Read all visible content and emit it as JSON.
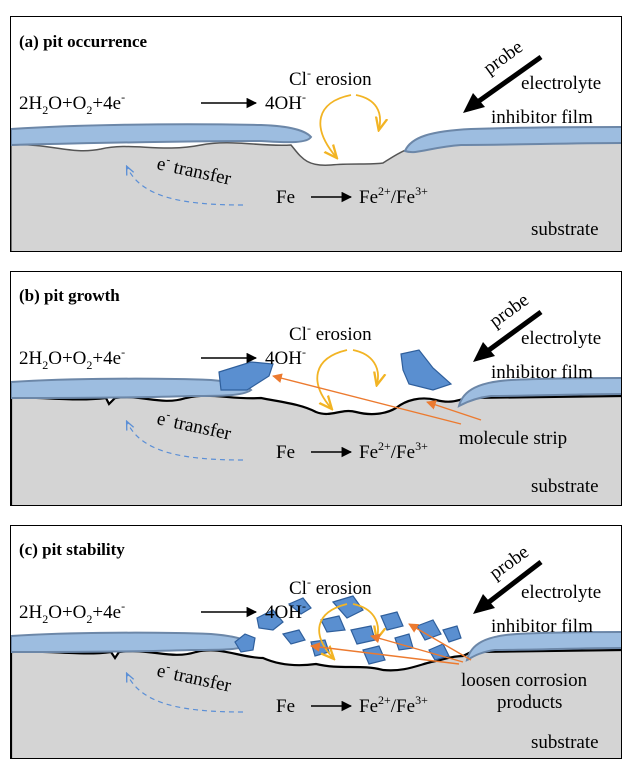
{
  "panels": [
    {
      "title": "(a) pit occurrence",
      "cathodic": {
        "base": "2H",
        "sub1": "2",
        "mid1": "O+O",
        "sub2": "2",
        "mid2": "+4e",
        "sup": "-",
        "product": "4OH",
        "product_sup": "-"
      },
      "erosion": {
        "ion": "Cl",
        "sup": "-",
        "text": " erosion"
      },
      "transfer": {
        "base": "e",
        "sup": "-",
        "text": " transfer"
      },
      "anodic": {
        "left": "Fe",
        "right1": "Fe",
        "sup1": "2+",
        "slash": "/Fe",
        "sup2": "3+"
      },
      "probe": "probe",
      "electrolyte": "electrolyte",
      "inhibitor_film": "inhibitor film",
      "substrate": "substrate"
    },
    {
      "title": "(b) pit growth",
      "cathodic": {
        "base": "2H",
        "sub1": "2",
        "mid1": "O+O",
        "sub2": "2",
        "mid2": "+4e",
        "sup": "-",
        "product": "4OH",
        "product_sup": "-"
      },
      "erosion": {
        "ion": "Cl",
        "sup": "-",
        "text": " erosion"
      },
      "transfer": {
        "base": "e",
        "sup": "-",
        "text": " transfer"
      },
      "anodic": {
        "left": "Fe",
        "right1": "Fe",
        "sup1": "2+",
        "slash": "/Fe",
        "sup2": "3+"
      },
      "probe": "probe",
      "electrolyte": "electrolyte",
      "inhibitor_film": "inhibitor film",
      "substrate": "substrate",
      "annotation": "molecule strip"
    },
    {
      "title": "(c) pit stability",
      "cathodic": {
        "base": "2H",
        "sub1": "2",
        "mid1": "O+O",
        "sub2": "2",
        "mid2": "+4e",
        "sup": "-",
        "product": "4OH",
        "product_sup": "-"
      },
      "erosion": {
        "ion": "Cl",
        "sup": "-",
        "text": " erosion"
      },
      "transfer": {
        "base": "e",
        "sup": "-",
        "text": " transfer"
      },
      "anodic": {
        "left": "Fe",
        "right1": "Fe",
        "sup1": "2+",
        "slash": "/Fe",
        "sup2": "3+"
      },
      "probe": "probe",
      "electrolyte": "electrolyte",
      "inhibitor_film": "inhibitor film",
      "substrate": "substrate",
      "annotation_line1": "loosen corrosion",
      "annotation_line2": "products"
    }
  ],
  "colors": {
    "substrate": "#d4d4d4",
    "film": "#9dbde0",
    "film_stroke": "#6c87a8",
    "flake": "#5a8fd0",
    "flake_stroke": "#2f5f9c",
    "erosion_arrow": "#f2b424",
    "annotation_arrow": "#ec7a2f",
    "transfer_arrow": "#5b8fd6"
  }
}
